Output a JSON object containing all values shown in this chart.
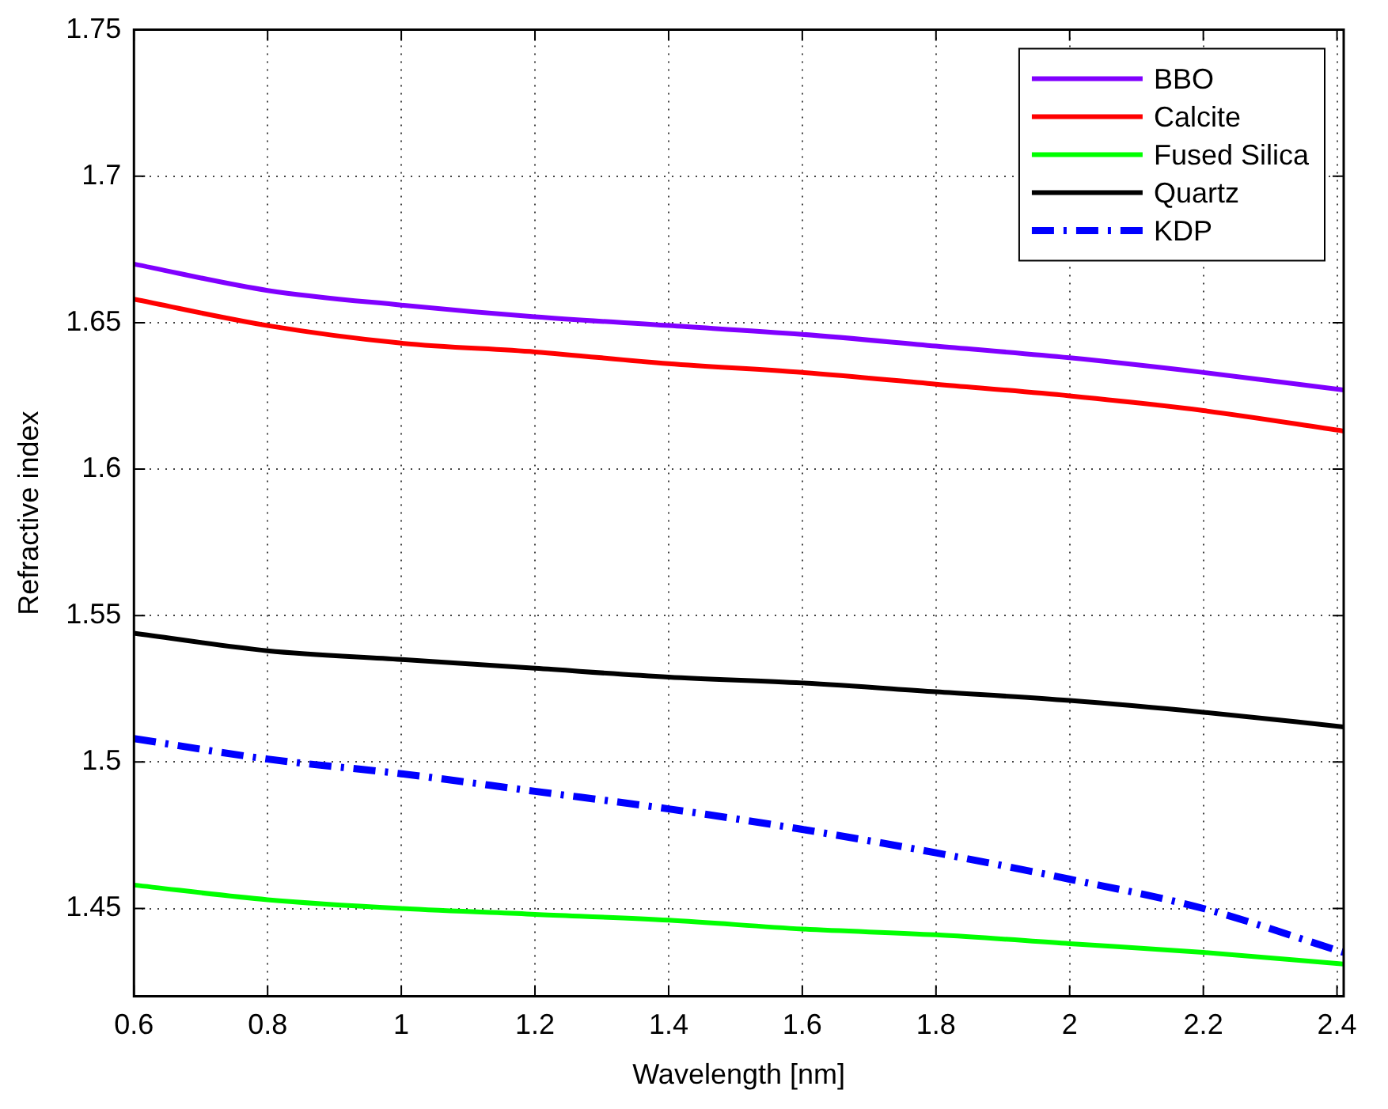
{
  "chart_data": {
    "type": "line",
    "xlabel": "Wavelength [nm]",
    "ylabel": "Refractive index",
    "x": [
      0.6,
      0.8,
      1.0,
      1.2,
      1.4,
      1.6,
      1.8,
      2.0,
      2.2,
      2.41
    ],
    "series": [
      {
        "name": "BBO",
        "color": "#8000ff",
        "values": [
          1.67,
          1.661,
          1.656,
          1.652,
          1.649,
          1.646,
          1.642,
          1.638,
          1.633,
          1.627
        ]
      },
      {
        "name": "Calcite",
        "color": "#ff0000",
        "values": [
          1.658,
          1.649,
          1.643,
          1.64,
          1.636,
          1.633,
          1.629,
          1.625,
          1.62,
          1.613
        ]
      },
      {
        "name": "Fused Silica",
        "color": "#00ff00",
        "values": [
          1.458,
          1.453,
          1.45,
          1.448,
          1.446,
          1.443,
          1.441,
          1.438,
          1.435,
          1.431
        ]
      },
      {
        "name": "Quartz",
        "color": "#000000",
        "values": [
          1.544,
          1.538,
          1.535,
          1.532,
          1.529,
          1.527,
          1.524,
          1.521,
          1.517,
          1.512
        ]
      },
      {
        "name": "KDP",
        "color": "#0000ff",
        "line_style": "dashed",
        "values": [
          1.508,
          1.501,
          1.496,
          1.49,
          1.484,
          1.477,
          1.469,
          1.46,
          1.45,
          1.435
        ]
      }
    ],
    "xlim": [
      0.6,
      2.41
    ],
    "xticks": [
      0.6,
      0.8,
      1,
      1.2,
      1.4,
      1.6,
      1.8,
      2,
      2.2,
      2.4
    ],
    "ylim": [
      1.42,
      1.75
    ],
    "yticks": [
      1.45,
      1.5,
      1.55,
      1.6,
      1.65,
      1.7,
      1.75
    ],
    "grid": true,
    "legend": "top right",
    "marker": "none",
    "line_style": "solid"
  }
}
